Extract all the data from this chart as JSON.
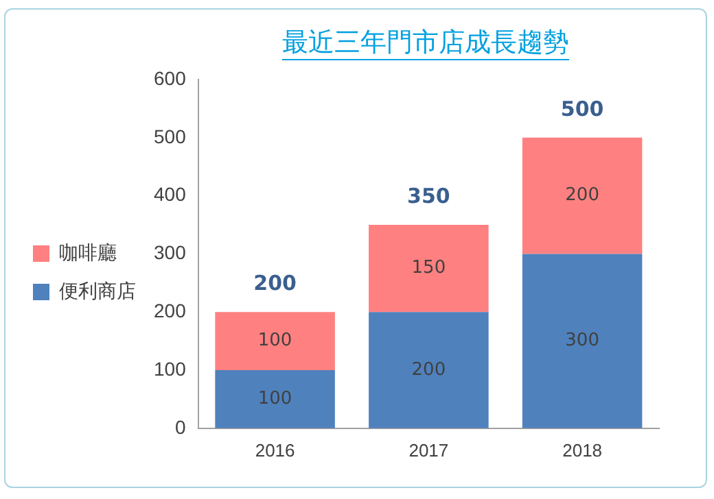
{
  "chart_data": {
    "type": "bar",
    "title": "最近三年門市店成長趨勢",
    "categories": [
      "2016",
      "2017",
      "2018"
    ],
    "stacked": true,
    "series": [
      {
        "name": "便利商店",
        "color": "#4f81bd",
        "values": [
          100,
          200,
          300
        ]
      },
      {
        "name": "咖啡廳",
        "color": "#ff8080",
        "values": [
          100,
          150,
          200
        ]
      }
    ],
    "data_labels": true,
    "totals": [
      "200",
      "350",
      "500"
    ],
    "ylim": [
      0,
      600
    ],
    "yticks": [
      0,
      100,
      200,
      300,
      400,
      500,
      600
    ],
    "grid": false,
    "legend": "left"
  }
}
